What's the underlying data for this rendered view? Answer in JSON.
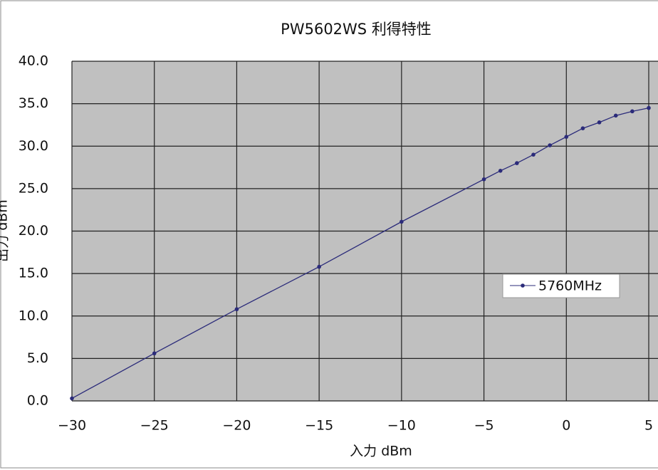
{
  "chart_data": {
    "type": "line",
    "title": "PW5602WS 利得特性",
    "x_label": "入力 dBm",
    "y_label": "出力 dBm",
    "x": [
      -30,
      -25,
      -20,
      -15,
      -10,
      -5,
      -4,
      -3,
      -2,
      -1,
      0,
      1,
      2,
      3,
      4,
      5
    ],
    "series": [
      {
        "name": "5760MHz",
        "color": "#2b2b7a",
        "values": [
          0.3,
          5.6,
          10.8,
          15.8,
          21.1,
          26.1,
          27.1,
          28.0,
          29.0,
          30.1,
          31.1,
          32.1,
          32.8,
          33.6,
          34.1,
          34.5
        ]
      }
    ],
    "xlim": [
      -30,
      5
    ],
    "xticks": [
      {
        "value": -30,
        "label": "−30"
      },
      {
        "value": -25,
        "label": "−25"
      },
      {
        "value": -20,
        "label": "−20"
      },
      {
        "value": -15,
        "label": "−15"
      },
      {
        "value": -10,
        "label": "−10"
      },
      {
        "value": -5,
        "label": "−5"
      },
      0,
      5
    ],
    "ylim": [
      0,
      40
    ],
    "yticks": [
      {
        "value": 0,
        "label": "0.0"
      },
      {
        "value": 5,
        "label": "5.0"
      },
      {
        "value": 10,
        "label": "10.0"
      },
      {
        "value": 15,
        "label": "15.0"
      },
      {
        "value": 20,
        "label": "20.0"
      },
      {
        "value": 25,
        "label": "25.0"
      },
      {
        "value": 30,
        "label": "30.0"
      },
      {
        "value": 35,
        "label": "35.0"
      },
      {
        "value": 40,
        "label": "40.0"
      }
    ],
    "grid": true
  }
}
